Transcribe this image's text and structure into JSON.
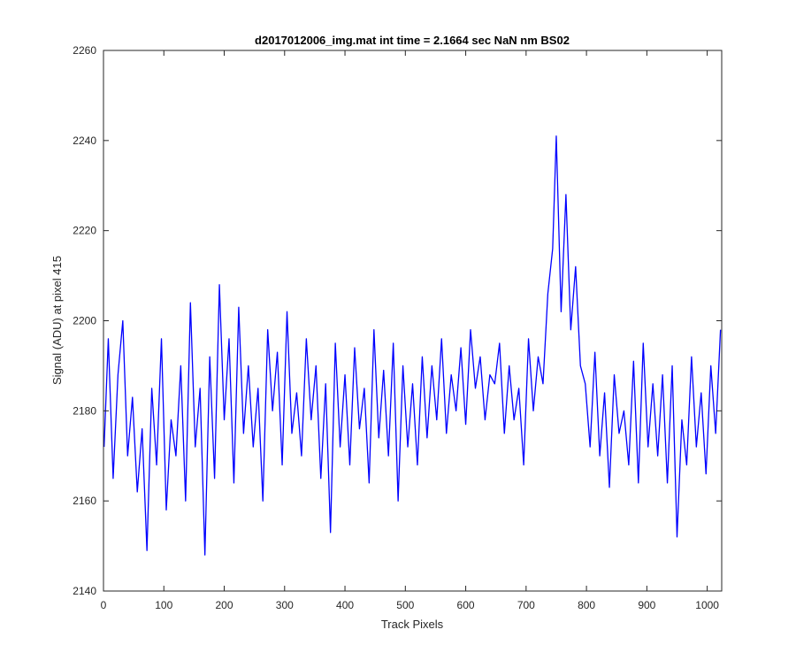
{
  "chart_data": {
    "type": "line",
    "title": "d2017012006_img.mat int time = 2.1664 sec  NaN nm BS02",
    "xlabel": "Track Pixels",
    "ylabel": "Signal (ADU) at pixel 415",
    "xlim": [
      0,
      1024
    ],
    "ylim": [
      2140,
      2260
    ],
    "xticks": [
      0,
      100,
      200,
      300,
      400,
      500,
      600,
      700,
      800,
      900,
      1000
    ],
    "yticks": [
      2140,
      2160,
      2180,
      2200,
      2220,
      2240,
      2260
    ],
    "grid": false,
    "legend": "none",
    "line_color": "#0000ff",
    "series": [
      {
        "x": [
          1,
          8,
          16,
          24,
          32,
          40,
          48,
          56,
          64,
          72,
          80,
          88,
          96,
          104,
          112,
          120,
          128,
          136,
          144,
          152,
          160,
          168,
          176,
          184,
          192,
          200,
          208,
          216,
          224,
          232,
          240,
          248,
          256,
          264,
          272,
          280,
          288,
          296,
          304,
          312,
          320,
          328,
          336,
          344,
          352,
          360,
          368,
          376,
          384,
          392,
          400,
          408,
          416,
          424,
          432,
          440,
          448,
          456,
          464,
          472,
          480,
          488,
          496,
          504,
          512,
          520,
          528,
          536,
          544,
          552,
          560,
          568,
          576,
          584,
          592,
          600,
          608,
          616,
          624,
          632,
          640,
          648,
          656,
          664,
          672,
          680,
          688,
          696,
          704,
          712,
          720,
          728,
          736,
          744,
          750,
          758,
          766,
          774,
          782,
          790,
          798,
          806,
          814,
          822,
          830,
          838,
          846,
          854,
          862,
          870,
          878,
          886,
          894,
          902,
          910,
          918,
          926,
          934,
          942,
          950,
          958,
          966,
          974,
          982,
          990,
          998,
          1006,
          1014,
          1022
        ],
        "values": [
          2172,
          2196,
          2165,
          2188,
          2200,
          2170,
          2183,
          2162,
          2176,
          2149,
          2185,
          2168,
          2196,
          2158,
          2178,
          2170,
          2190,
          2160,
          2204,
          2172,
          2185,
          2148,
          2192,
          2165,
          2208,
          2178,
          2196,
          2164,
          2203,
          2175,
          2190,
          2172,
          2185,
          2160,
          2198,
          2180,
          2193,
          2168,
          2202,
          2175,
          2184,
          2170,
          2196,
          2178,
          2190,
          2165,
          2186,
          2153,
          2195,
          2172,
          2188,
          2168,
          2194,
          2176,
          2185,
          2164,
          2198,
          2174,
          2189,
          2170,
          2195,
          2160,
          2190,
          2172,
          2186,
          2168,
          2192,
          2174,
          2190,
          2178,
          2196,
          2175,
          2188,
          2180,
          2194,
          2177,
          2198,
          2185,
          2192,
          2178,
          2188,
          2186,
          2195,
          2175,
          2190,
          2178,
          2185,
          2168,
          2196,
          2180,
          2192,
          2186,
          2206,
          2216,
          2241,
          2202,
          2228,
          2198,
          2212,
          2190,
          2186,
          2172,
          2193,
          2170,
          2184,
          2163,
          2188,
          2175,
          2180,
          2168,
          2191,
          2164,
          2195,
          2172,
          2186,
          2170,
          2188,
          2164,
          2190,
          2152,
          2178,
          2168,
          2192,
          2172,
          2184,
          2166,
          2190,
          2175,
          2198
        ]
      }
    ]
  }
}
